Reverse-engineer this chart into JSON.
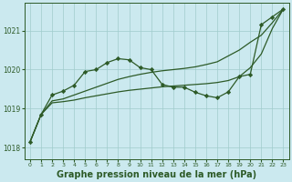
{
  "background_color": "#cbe9ef",
  "plot_bg_color": "#cbe9ef",
  "grid_color": "#a0cccc",
  "line_color": "#2d5a27",
  "marker_color": "#2d5a27",
  "title": "Graphe pression niveau de la mer (hPa)",
  "title_fontsize": 7,
  "title_bold": true,
  "xlim": [
    -0.5,
    23.5
  ],
  "ylim": [
    1017.7,
    1021.7
  ],
  "yticks": [
    1018,
    1019,
    1020,
    1021
  ],
  "xticks": [
    0,
    1,
    2,
    3,
    4,
    5,
    6,
    7,
    8,
    9,
    10,
    11,
    12,
    13,
    14,
    15,
    16,
    17,
    18,
    19,
    20,
    21,
    22,
    23
  ],
  "series": [
    {
      "x": [
        0,
        1,
        2,
        3,
        4,
        5,
        6,
        7,
        8,
        9,
        10,
        11,
        12,
        13,
        14,
        15,
        16,
        17,
        18,
        19,
        20,
        21,
        22,
        23
      ],
      "y": [
        1018.15,
        1018.85,
        1019.35,
        1019.45,
        1019.6,
        1019.95,
        1020.0,
        1020.18,
        1020.28,
        1020.25,
        1020.05,
        1020.0,
        1019.62,
        1019.55,
        1019.55,
        1019.42,
        1019.33,
        1019.28,
        1019.43,
        1019.82,
        1019.88,
        1021.15,
        1021.35,
        1021.55
      ],
      "with_markers": true
    },
    {
      "x": [
        0,
        1,
        2,
        3,
        4,
        5,
        6,
        7,
        8,
        9,
        10,
        11,
        12,
        13,
        14,
        15,
        16,
        17,
        18,
        19,
        20,
        21,
        22,
        23
      ],
      "y": [
        1018.15,
        1018.85,
        1019.2,
        1019.25,
        1019.35,
        1019.45,
        1019.55,
        1019.65,
        1019.75,
        1019.82,
        1019.88,
        1019.93,
        1019.97,
        1020.0,
        1020.03,
        1020.07,
        1020.13,
        1020.2,
        1020.35,
        1020.5,
        1020.7,
        1020.88,
        1021.2,
        1021.55
      ],
      "with_markers": false
    },
    {
      "x": [
        0,
        1,
        2,
        3,
        4,
        5,
        6,
        7,
        8,
        9,
        10,
        11,
        12,
        13,
        14,
        15,
        16,
        17,
        18,
        19,
        20,
        21,
        22,
        23
      ],
      "y": [
        1018.15,
        1018.85,
        1019.15,
        1019.18,
        1019.22,
        1019.28,
        1019.33,
        1019.38,
        1019.43,
        1019.47,
        1019.5,
        1019.53,
        1019.56,
        1019.58,
        1019.6,
        1019.62,
        1019.64,
        1019.67,
        1019.72,
        1019.82,
        1020.05,
        1020.4,
        1021.05,
        1021.55
      ],
      "with_markers": false
    }
  ]
}
